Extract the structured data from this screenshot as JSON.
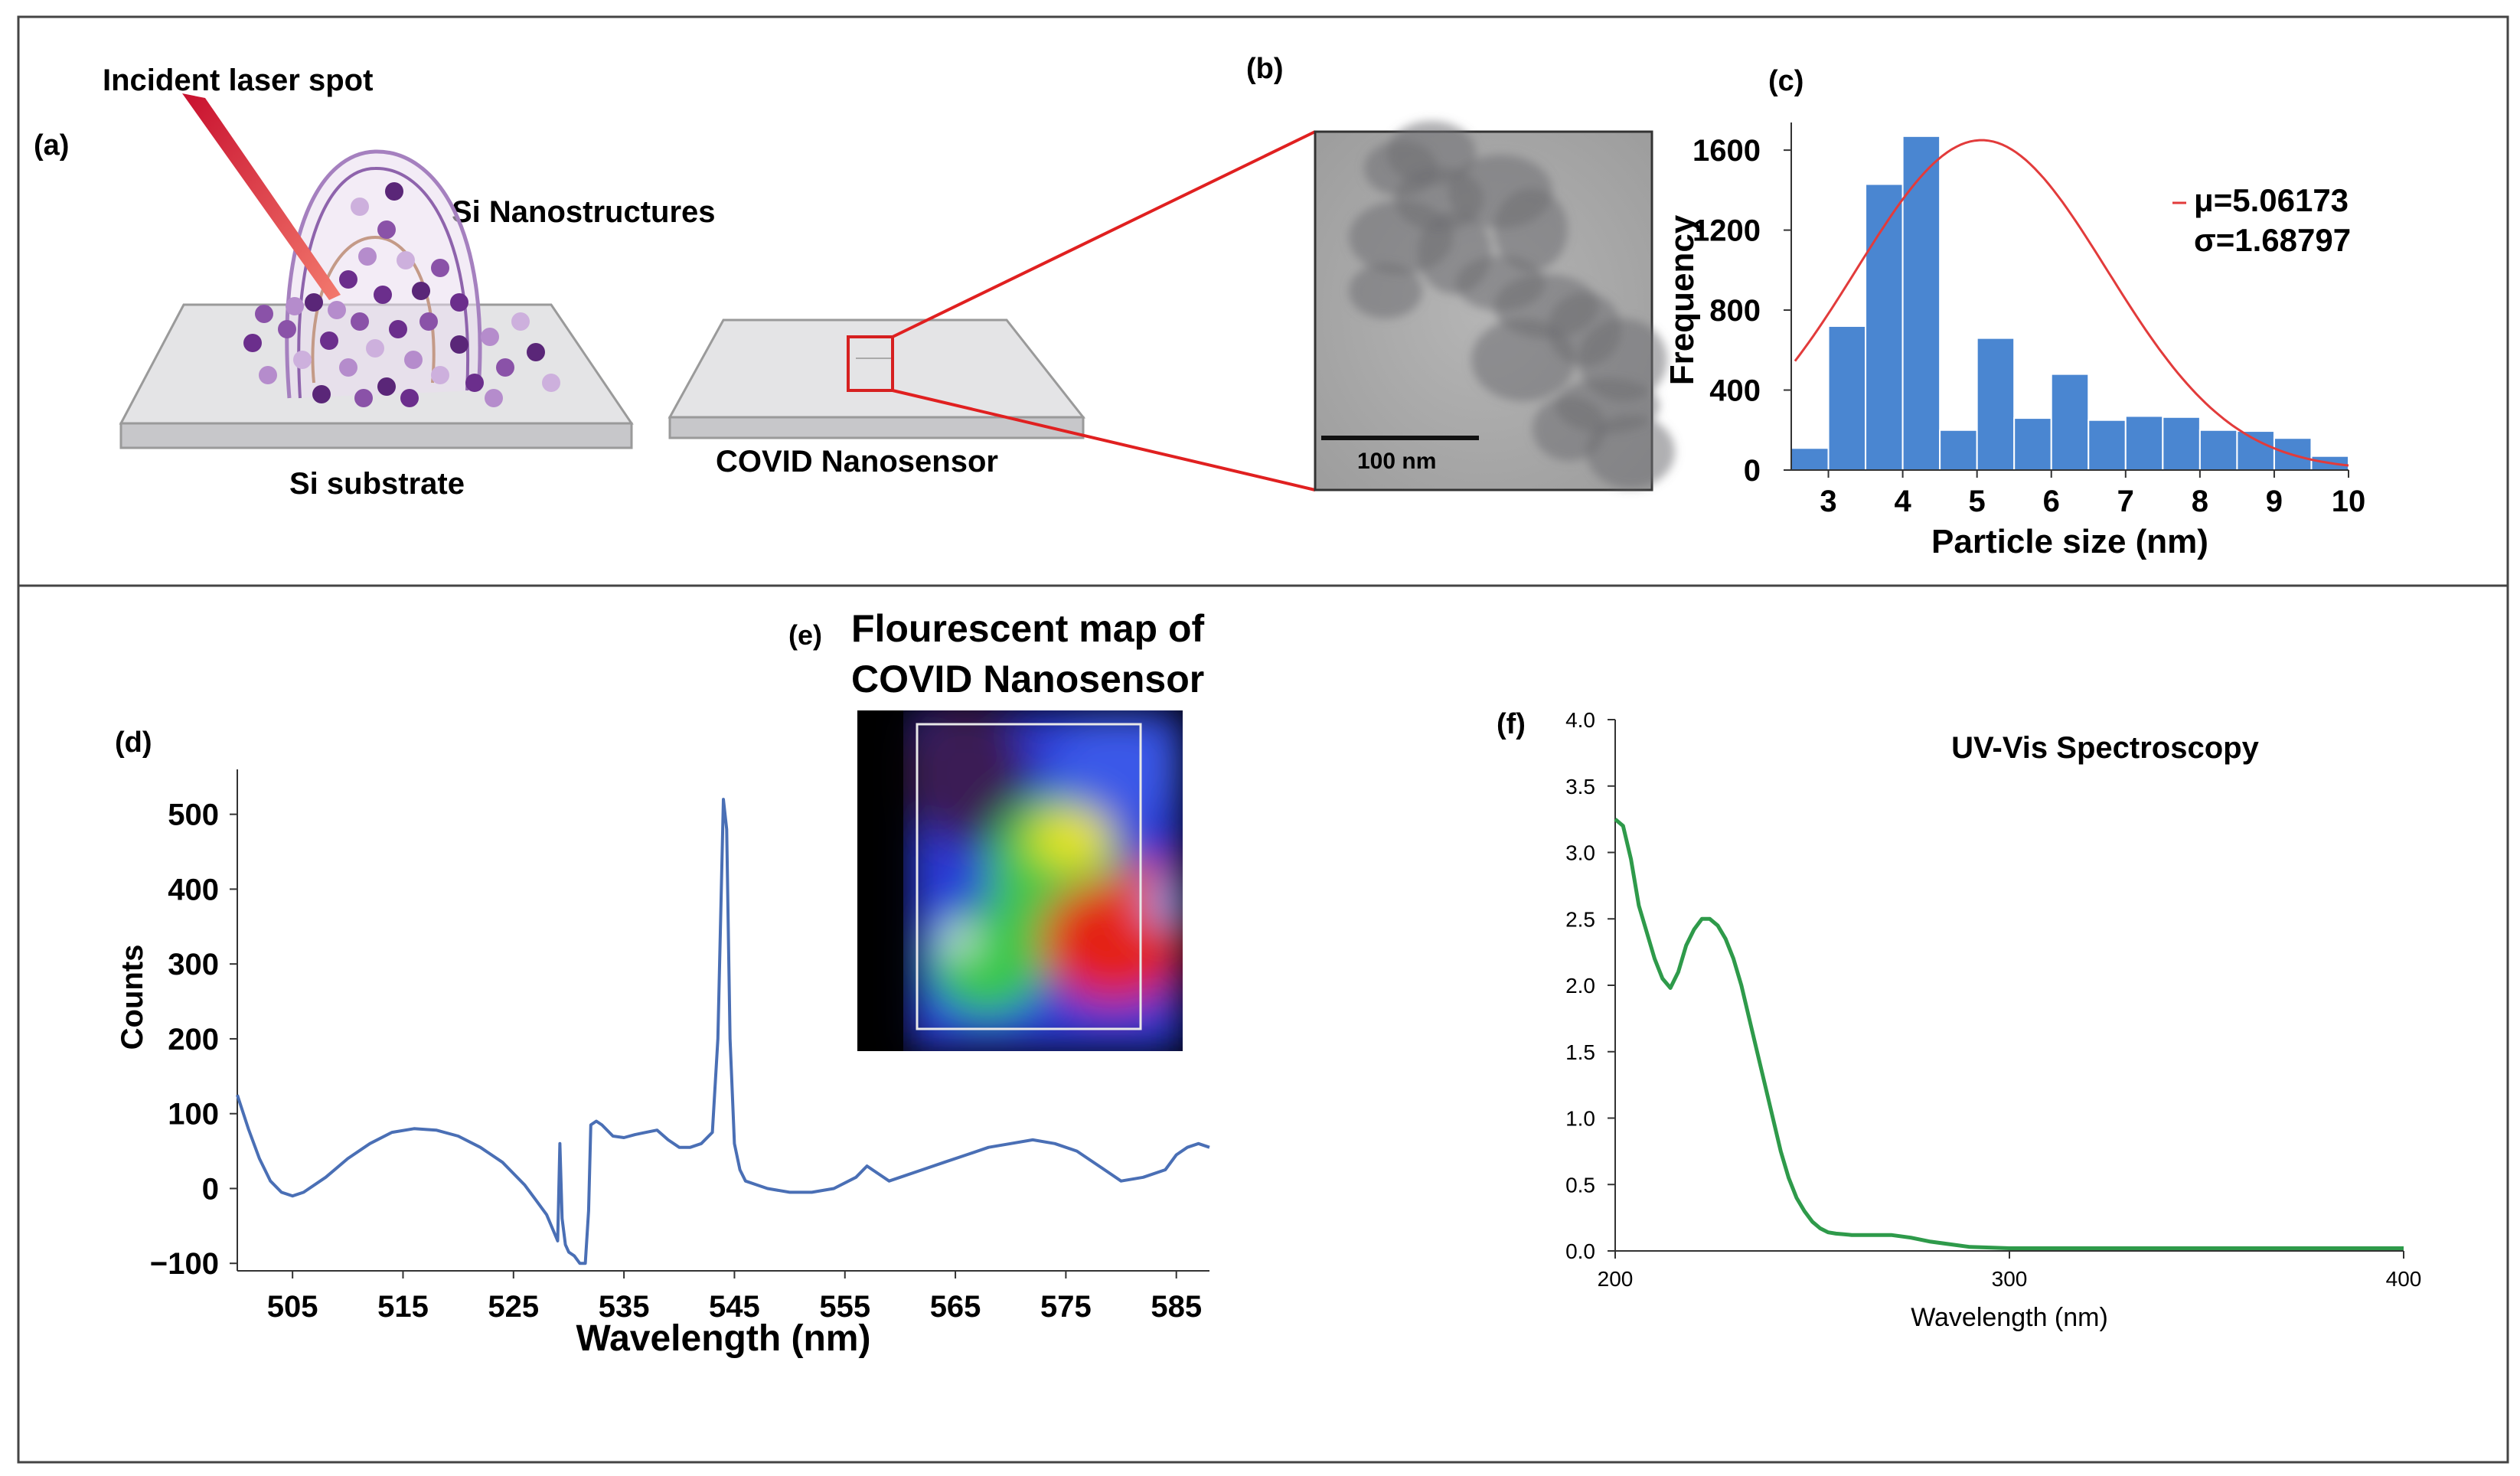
{
  "panels": {
    "a": {
      "label": "(a)",
      "laser_label": "Incident laser spot",
      "nanostructures_label": "Si Nanostructures",
      "substrate_label": "Si substrate",
      "sensor_label": "COVID Nanosensor"
    },
    "b": {
      "label": "(b)",
      "scalebar_label": "100 nm"
    },
    "c": {
      "label": "(c)"
    },
    "d": {
      "label": "(d)"
    },
    "e": {
      "label": "(e)",
      "title_line1": "Flourescent map of",
      "title_line2": "COVID Nanosensor"
    },
    "f": {
      "label": "(f)"
    }
  },
  "colors": {
    "hist_bar": "#4a86d1",
    "fit_curve": "#e23b3b",
    "spectrum_line": "#4a6fb5",
    "uvvis_line": "#2e9a4a",
    "zoom_lines": "#e02020",
    "frame": "#555555"
  },
  "chart_data": [
    {
      "id": "c",
      "type": "bar",
      "xlabel": "Particle size (nm)",
      "ylabel": "Frequency",
      "xlim": [
        2.5,
        10
      ],
      "ylim": [
        0,
        1700
      ],
      "xticks": [
        3,
        4,
        5,
        6,
        7,
        8,
        9,
        10
      ],
      "yticks": [
        0,
        400,
        800,
        1200,
        1600
      ],
      "bin_edges": [
        2.5,
        3.0,
        3.5,
        4.0,
        4.5,
        5.0,
        5.5,
        6.0,
        6.5,
        7.0,
        7.5,
        8.0,
        8.5,
        9.0,
        9.5,
        10.0
      ],
      "values": [
        110,
        720,
        1430,
        1670,
        200,
        660,
        260,
        480,
        250,
        270,
        265,
        200,
        195,
        160,
        70
      ],
      "fit": {
        "type": "normal",
        "peak": 1650,
        "mu": 5.06173,
        "sigma": 1.68797
      },
      "legend": [
        "μ=5.06173",
        "σ=1.68797"
      ],
      "grid": false
    },
    {
      "id": "d",
      "type": "line",
      "xlabel": "Wavelength (nm)",
      "ylabel": "Counts",
      "xlim": [
        500,
        588
      ],
      "ylim": [
        -110,
        560
      ],
      "xticks": [
        505,
        515,
        525,
        535,
        545,
        555,
        565,
        575,
        585
      ],
      "yticks": [
        -100,
        0,
        100,
        200,
        300,
        400,
        500
      ],
      "x": [
        500,
        501,
        502,
        503,
        504,
        505,
        506,
        508,
        510,
        512,
        514,
        516,
        518,
        520,
        522,
        524,
        526,
        527,
        528,
        529,
        529.2,
        529.4,
        529.7,
        530,
        530.5,
        531,
        531.5,
        531.8,
        532,
        532.5,
        533,
        534,
        535,
        536,
        537,
        538,
        539,
        540,
        541,
        542,
        543,
        543.5,
        544,
        544.3,
        544.6,
        545,
        545.5,
        546,
        547,
        548,
        550,
        552,
        554,
        556,
        557,
        558,
        559,
        560,
        562,
        564,
        566,
        568,
        570,
        572,
        574,
        576,
        578,
        579,
        580,
        582,
        584,
        585,
        586,
        587,
        588
      ],
      "y": [
        125,
        80,
        40,
        10,
        -5,
        -10,
        -5,
        15,
        40,
        60,
        75,
        80,
        78,
        70,
        55,
        35,
        5,
        -15,
        -35,
        -70,
        60,
        -40,
        -75,
        -85,
        -90,
        -100,
        -100,
        -30,
        85,
        90,
        85,
        70,
        68,
        72,
        75,
        78,
        65,
        55,
        55,
        60,
        75,
        200,
        520,
        480,
        200,
        60,
        25,
        10,
        5,
        0,
        -5,
        -5,
        0,
        15,
        30,
        20,
        10,
        15,
        25,
        35,
        45,
        55,
        60,
        65,
        60,
        50,
        30,
        20,
        10,
        15,
        25,
        45,
        55,
        60,
        55
      ],
      "grid": false
    },
    {
      "id": "f",
      "type": "line",
      "title": "UV-Vis Spectroscopy",
      "xlabel": "Wavelength (nm)",
      "ylabel": "",
      "xlim": [
        200,
        400
      ],
      "ylim": [
        0,
        4
      ],
      "xticks": [
        200,
        300,
        400
      ],
      "yticks": [
        0.0,
        0.5,
        1.0,
        1.5,
        2.0,
        2.5,
        3.0,
        3.5,
        4.0
      ],
      "ytick_labels": [
        "0.0",
        "0.5",
        "1.0",
        "1.5",
        "2.0",
        "2.5",
        "3.0",
        "3.5",
        "4.0"
      ],
      "x": [
        200,
        202,
        204,
        206,
        208,
        210,
        212,
        214,
        216,
        218,
        220,
        222,
        224,
        226,
        228,
        230,
        232,
        234,
        236,
        238,
        240,
        242,
        244,
        246,
        248,
        250,
        252,
        254,
        256,
        258,
        260,
        265,
        270,
        275,
        280,
        290,
        300,
        320,
        350,
        380,
        400
      ],
      "y": [
        3.25,
        3.2,
        2.95,
        2.6,
        2.4,
        2.2,
        2.05,
        1.98,
        2.1,
        2.3,
        2.42,
        2.5,
        2.5,
        2.45,
        2.35,
        2.2,
        2.0,
        1.75,
        1.5,
        1.25,
        1.0,
        0.75,
        0.55,
        0.4,
        0.3,
        0.22,
        0.17,
        0.14,
        0.13,
        0.125,
        0.12,
        0.12,
        0.12,
        0.1,
        0.07,
        0.03,
        0.02,
        0.02,
        0.02,
        0.02,
        0.02
      ],
      "grid": false
    }
  ]
}
